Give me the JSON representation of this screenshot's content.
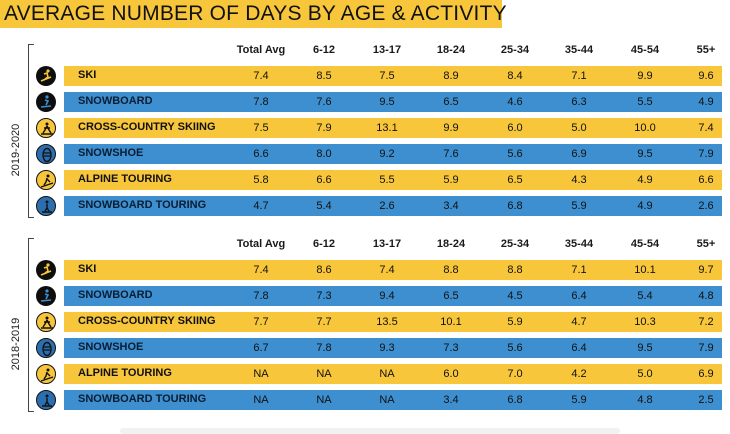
{
  "title": "AVERAGE NUMBER OF DAYS BY AGE & ACTIVITY",
  "chart_data": {
    "type": "table",
    "columns": [
      "Total Avg",
      "6-12",
      "13-17",
      "18-24",
      "25-34",
      "35-44",
      "45-54",
      "55+"
    ],
    "sections": [
      {
        "year": "2019-2020",
        "rows": [
          {
            "activity": "SKI",
            "icon": "skier-icon",
            "values": [
              "7.4",
              "8.5",
              "7.5",
              "8.9",
              "8.4",
              "7.1",
              "9.9",
              "9.6"
            ]
          },
          {
            "activity": "SNOWBOARD",
            "icon": "snowboarder-icon",
            "values": [
              "7.8",
              "7.6",
              "9.5",
              "6.5",
              "4.6",
              "6.3",
              "5.5",
              "4.9"
            ]
          },
          {
            "activity": "CROSS-COUNTRY SKIING",
            "icon": "cross-country-skier-icon",
            "values": [
              "7.5",
              "7.9",
              "13.1",
              "9.9",
              "6.0",
              "5.0",
              "10.0",
              "7.4"
            ]
          },
          {
            "activity": "SNOWSHOE",
            "icon": "snowshoe-icon",
            "values": [
              "6.6",
              "8.0",
              "9.2",
              "7.6",
              "5.6",
              "6.9",
              "9.5",
              "7.9"
            ]
          },
          {
            "activity": "ALPINE TOURING",
            "icon": "alpine-touring-icon",
            "values": [
              "5.8",
              "6.6",
              "5.5",
              "5.9",
              "6.5",
              "4.3",
              "4.9",
              "6.6"
            ]
          },
          {
            "activity": "SNOWBOARD TOURING",
            "icon": "snowboard-touring-icon",
            "values": [
              "4.7",
              "5.4",
              "2.6",
              "3.4",
              "6.8",
              "5.9",
              "4.9",
              "2.6"
            ]
          }
        ]
      },
      {
        "year": "2018-2019",
        "rows": [
          {
            "activity": "SKI",
            "icon": "skier-icon",
            "values": [
              "7.4",
              "8.6",
              "7.4",
              "8.8",
              "8.8",
              "7.1",
              "10.1",
              "9.7"
            ]
          },
          {
            "activity": "SNOWBOARD",
            "icon": "snowboarder-icon",
            "values": [
              "7.8",
              "7.3",
              "9.4",
              "6.5",
              "4.5",
              "6.4",
              "5.4",
              "4.8"
            ]
          },
          {
            "activity": "CROSS-COUNTRY SKIING",
            "icon": "cross-country-skier-icon",
            "values": [
              "7.7",
              "7.7",
              "13.5",
              "10.1",
              "5.9",
              "4.7",
              "10.3",
              "7.2"
            ]
          },
          {
            "activity": "SNOWSHOE",
            "icon": "snowshoe-icon",
            "values": [
              "6.7",
              "7.8",
              "9.3",
              "7.3",
              "5.6",
              "6.4",
              "9.5",
              "7.9"
            ]
          },
          {
            "activity": "ALPINE TOURING",
            "icon": "alpine-touring-icon",
            "values": [
              "NA",
              "NA",
              "NA",
              "6.0",
              "7.0",
              "4.2",
              "5.0",
              "6.9"
            ]
          },
          {
            "activity": "SNOWBOARD TOURING",
            "icon": "snowboard-touring-icon",
            "values": [
              "NA",
              "NA",
              "NA",
              "3.4",
              "6.8",
              "5.9",
              "4.8",
              "2.5"
            ]
          }
        ]
      }
    ]
  },
  "colors": {
    "yellow": "#f7c63b",
    "blue": "#3d8fcf"
  }
}
